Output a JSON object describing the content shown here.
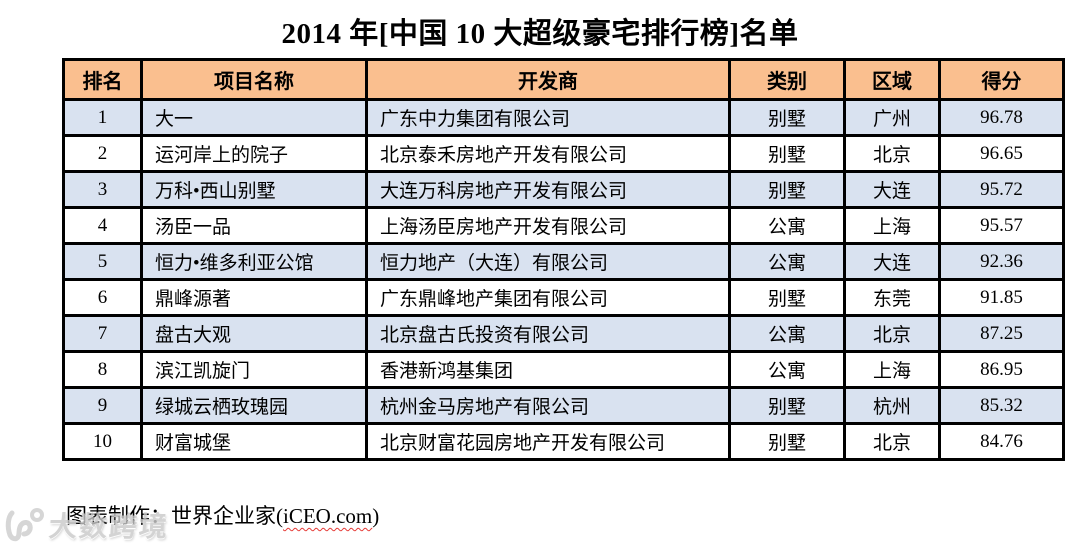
{
  "title": "2014 年[中国 10 大超级豪宅排行榜]名单",
  "chart_data": {
    "type": "table",
    "title": "2014 年[中国 10 大超级豪宅排行榜]名单",
    "columns": [
      "排名",
      "项目名称",
      "开发商",
      "类别",
      "区域",
      "得分"
    ],
    "rows": [
      [
        "1",
        "大一",
        "广东中力集团有限公司",
        "别墅",
        "广州",
        "96.78"
      ],
      [
        "2",
        "运河岸上的院子",
        "北京泰禾房地产开发有限公司",
        "别墅",
        "北京",
        "96.65"
      ],
      [
        "3",
        "万科•西山别墅",
        "大连万科房地产开发有限公司",
        "别墅",
        "大连",
        "95.72"
      ],
      [
        "4",
        "汤臣一品",
        "上海汤臣房地产开发有限公司",
        "公寓",
        "上海",
        "95.57"
      ],
      [
        "5",
        "恒力•维多利亚公馆",
        "恒力地产（大连）有限公司",
        "公寓",
        "大连",
        "92.36"
      ],
      [
        "6",
        "鼎峰源著",
        "广东鼎峰地产集团有限公司",
        "别墅",
        "东莞",
        "91.85"
      ],
      [
        "7",
        "盘古大观",
        "北京盘古氏投资有限公司",
        "公寓",
        "北京",
        "87.25"
      ],
      [
        "8",
        "滨江凯旋门",
        "香港新鸿基集团",
        "公寓",
        "上海",
        "86.95"
      ],
      [
        "9",
        "绿城云栖玫瑰园",
        "杭州金马房地产有限公司",
        "别墅",
        "杭州",
        "85.32"
      ],
      [
        "10",
        "财富城堡",
        "北京财富花园房地产开发有限公司",
        "别墅",
        "北京",
        "84.76"
      ]
    ],
    "layout_hints": {
      "header_fill": "#FABF8F",
      "alt_row_fill": "#D9E2F0",
      "grid": "thick black borders",
      "alt_rows_shaded": "odd ranks (1,3,5,7,9)"
    }
  },
  "footer": {
    "credit_prefix": "图表制作：世界企业家(",
    "credit_site": "iCEO.com",
    "credit_suffix": ")"
  },
  "watermark": {
    "text": "大数跨境"
  },
  "colors": {
    "header_bg": "#FABF8F",
    "alt_row_bg": "#D9E2F0",
    "border": "#000000",
    "squiggle": "#E53935",
    "watermark_gray": "#C9C9C9"
  }
}
